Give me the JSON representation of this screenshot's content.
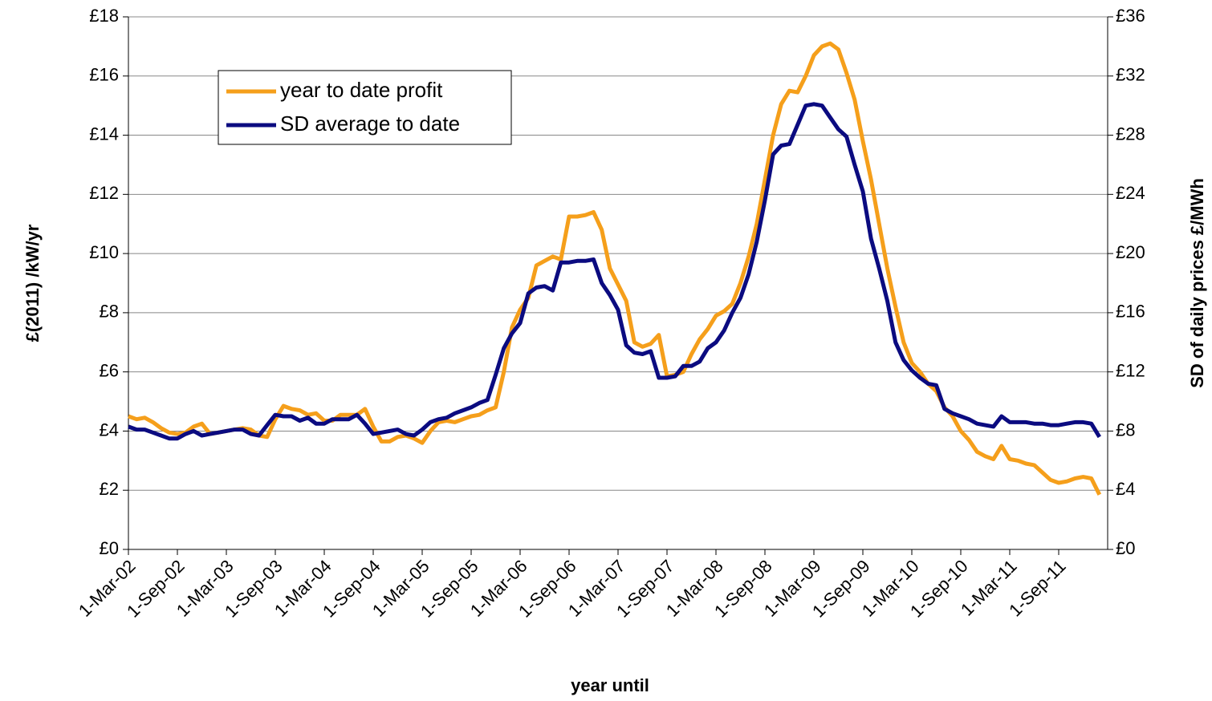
{
  "chart_data": {
    "type": "line",
    "x_label": "year until",
    "y_label": "£(2011) /kW/yr",
    "y2_label": "SD of daily prices £/MWh",
    "categories": [
      "1-Mar-02",
      null,
      null,
      null,
      null,
      null,
      "1-Sep-02",
      null,
      null,
      null,
      null,
      null,
      "1-Mar-03",
      null,
      null,
      null,
      null,
      null,
      "1-Sep-03",
      null,
      null,
      null,
      null,
      null,
      "1-Mar-04",
      null,
      null,
      null,
      null,
      null,
      "1-Sep-04",
      null,
      null,
      null,
      null,
      null,
      "1-Mar-05",
      null,
      null,
      null,
      null,
      null,
      "1-Sep-05",
      null,
      null,
      null,
      null,
      null,
      "1-Mar-06",
      null,
      null,
      null,
      null,
      null,
      "1-Sep-06",
      null,
      null,
      null,
      null,
      null,
      "1-Mar-07",
      null,
      null,
      null,
      null,
      null,
      "1-Sep-07",
      null,
      null,
      null,
      null,
      null,
      "1-Mar-08",
      null,
      null,
      null,
      null,
      null,
      "1-Sep-08",
      null,
      null,
      null,
      null,
      null,
      "1-Mar-09",
      null,
      null,
      null,
      null,
      null,
      "1-Sep-09",
      null,
      null,
      null,
      null,
      null,
      "1-Mar-10",
      null,
      null,
      null,
      null,
      null,
      "1-Sep-10",
      null,
      null,
      null,
      null,
      null,
      "1-Mar-11",
      null,
      null,
      null,
      null,
      null,
      "1-Sep-11",
      null,
      null,
      null,
      null,
      null
    ],
    "series": [
      {
        "name": "year to date profit",
        "color": "#f59f1b",
        "values": [
          4.5,
          4.4,
          4.45,
          4.3,
          4.1,
          3.95,
          3.9,
          3.95,
          4.15,
          4.25,
          3.9,
          3.95,
          4.0,
          4.05,
          4.1,
          4.05,
          3.85,
          3.8,
          4.4,
          4.85,
          4.75,
          4.7,
          4.55,
          4.6,
          4.35,
          4.35,
          4.55,
          4.55,
          4.55,
          4.75,
          4.15,
          3.65,
          3.65,
          3.8,
          3.85,
          3.75,
          3.6,
          4.0,
          4.3,
          4.35,
          4.3,
          4.4,
          4.5,
          4.55,
          4.7,
          4.8,
          6.0,
          7.5,
          8.1,
          8.5,
          9.6,
          9.75,
          9.9,
          9.8,
          11.25,
          11.25,
          11.3,
          11.4,
          10.8,
          9.5,
          8.95,
          8.4,
          7.0,
          6.85,
          6.95,
          7.25,
          5.85,
          5.9,
          6.0,
          6.6,
          7.1,
          7.45,
          7.9,
          8.05,
          8.3,
          9.0,
          9.9,
          11.0,
          12.5,
          14.0,
          15.05,
          15.5,
          15.45,
          16.0,
          16.7,
          17.0,
          17.1,
          16.9,
          16.1,
          15.2,
          13.8,
          12.5,
          11.0,
          9.5,
          8.2,
          7.0,
          6.3,
          6.0,
          5.6,
          5.35,
          4.8,
          4.5,
          4.0,
          3.7,
          3.3,
          3.15,
          3.05,
          3.5,
          3.05,
          3.0,
          2.9,
          2.85,
          2.6,
          2.35,
          2.25,
          2.3,
          2.4,
          2.45,
          2.4,
          1.85
        ]
      },
      {
        "name": "SD average to date",
        "color": "#0b0b80",
        "axis": "y2",
        "values": [
          8.3,
          8.1,
          8.1,
          7.9,
          7.7,
          7.5,
          7.5,
          7.8,
          8.0,
          7.7,
          7.8,
          7.9,
          8.0,
          8.1,
          8.1,
          7.8,
          7.7,
          8.4,
          9.1,
          9.0,
          9.0,
          8.7,
          8.9,
          8.5,
          8.5,
          8.8,
          8.8,
          8.8,
          9.1,
          8.5,
          7.8,
          7.9,
          8.0,
          8.1,
          7.8,
          7.7,
          8.1,
          8.6,
          8.8,
          8.9,
          9.2,
          9.4,
          9.6,
          9.9,
          10.1,
          11.8,
          13.6,
          14.6,
          15.3,
          17.3,
          17.7,
          17.8,
          17.5,
          19.4,
          19.4,
          19.5,
          19.5,
          19.6,
          18.0,
          17.2,
          16.2,
          13.8,
          13.3,
          13.2,
          13.4,
          11.6,
          11.6,
          11.7,
          12.4,
          12.4,
          12.7,
          13.6,
          14.0,
          14.8,
          16.0,
          17.0,
          18.6,
          20.8,
          23.6,
          26.7,
          27.3,
          27.4,
          28.7,
          30.0,
          30.1,
          30.0,
          29.2,
          28.4,
          27.9,
          26.0,
          24.2,
          21.0,
          19.0,
          16.8,
          14.0,
          12.8,
          12.1,
          11.6,
          11.2,
          11.1,
          9.5,
          9.2,
          9.0,
          8.8,
          8.5,
          8.4,
          8.3,
          9.0,
          8.6,
          8.6,
          8.6,
          8.5,
          8.5,
          8.4,
          8.4,
          8.5,
          8.6,
          8.6,
          8.5,
          7.6
        ]
      }
    ],
    "ylim": [
      0,
      18
    ],
    "yticks": [
      {
        "value": 0,
        "label": "£0"
      },
      {
        "value": 2,
        "label": "£2"
      },
      {
        "value": 4,
        "label": "£4"
      },
      {
        "value": 6,
        "label": "£6"
      },
      {
        "value": 8,
        "label": "£8"
      },
      {
        "value": 10,
        "label": "£10"
      },
      {
        "value": 12,
        "label": "£12"
      },
      {
        "value": 14,
        "label": "£14"
      },
      {
        "value": 16,
        "label": "£16"
      },
      {
        "value": 18,
        "label": "£18"
      }
    ],
    "y2lim": [
      0,
      36
    ],
    "y2ticks": [
      {
        "value": 0,
        "label": "£0"
      },
      {
        "value": 4,
        "label": "£4"
      },
      {
        "value": 8,
        "label": "£8"
      },
      {
        "value": 12,
        "label": "£12"
      },
      {
        "value": 16,
        "label": "£16"
      },
      {
        "value": 20,
        "label": "£20"
      },
      {
        "value": 24,
        "label": "£24"
      },
      {
        "value": 28,
        "label": "£28"
      },
      {
        "value": 32,
        "label": "£32"
      },
      {
        "value": 36,
        "label": "£36"
      }
    ],
    "grid": true,
    "legend": "upper left"
  }
}
